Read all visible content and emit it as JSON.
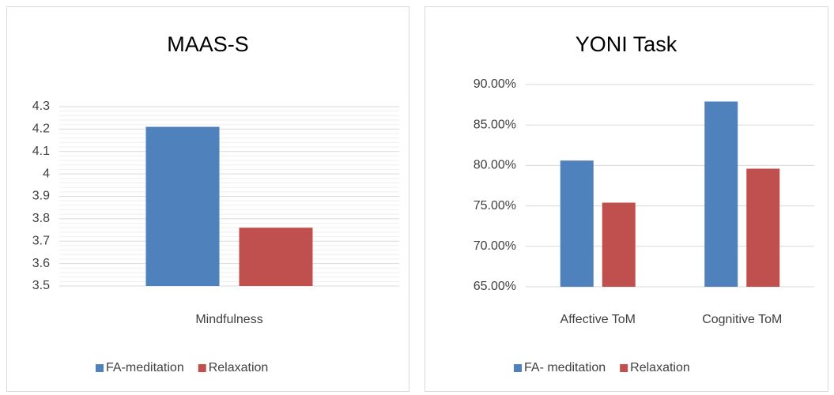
{
  "chart_data": [
    {
      "type": "bar",
      "title": "MAAS-S",
      "categories": [
        "Mindfulness"
      ],
      "series": [
        {
          "name": "FA-meditation",
          "color": "#4f81bd",
          "values": [
            4.21
          ]
        },
        {
          "name": "Relaxation",
          "color": "#c0504d",
          "values": [
            3.76
          ]
        }
      ],
      "ylim": [
        3.5,
        4.3
      ],
      "yticks": [
        3.5,
        3.6,
        3.7,
        3.8,
        3.9,
        4,
        4.1,
        4.2,
        4.3
      ],
      "grid": true,
      "minor_grid": true,
      "legend": "bottom"
    },
    {
      "type": "bar",
      "title": "YONI Task",
      "categories": [
        "Affective ToM",
        "Cognitive ToM"
      ],
      "series": [
        {
          "name": "FA- meditation",
          "color": "#4f81bd",
          "values": [
            80.6,
            87.9
          ]
        },
        {
          "name": "Relaxation",
          "color": "#c0504d",
          "values": [
            75.4,
            79.6
          ]
        }
      ],
      "ylim": [
        65,
        90
      ],
      "yticks": [
        {
          "value": 65,
          "label": "65.00%"
        },
        {
          "value": 70,
          "label": "70.00%"
        },
        {
          "value": 75,
          "label": "75.00%"
        },
        {
          "value": 80,
          "label": "80.00%"
        },
        {
          "value": 85,
          "label": "85.00%"
        },
        {
          "value": 90,
          "label": "90.00%"
        }
      ],
      "grid": true,
      "minor_grid": false,
      "legend": "bottom"
    }
  ]
}
